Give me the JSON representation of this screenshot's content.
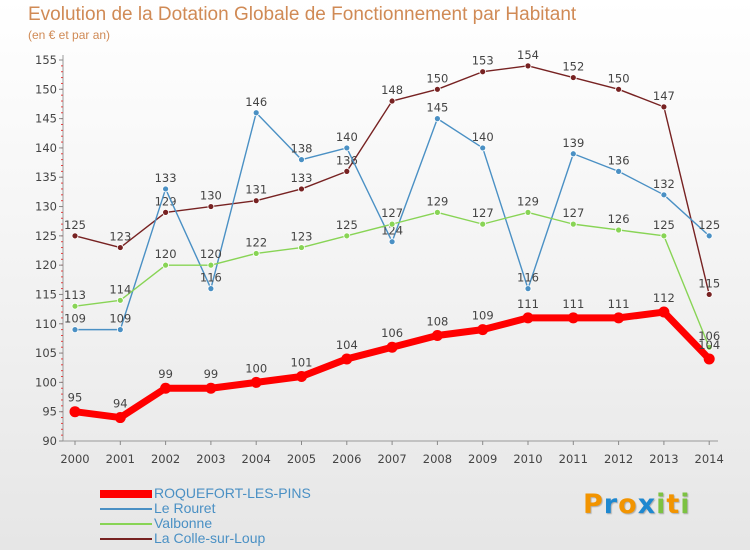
{
  "chart_data": {
    "type": "line",
    "title": "Evolution de la Dotation Globale de Fonctionnement par Habitant",
    "subtitle": "(en € et par an)",
    "xlabel": "",
    "ylabel": "",
    "ylim": [
      90,
      155
    ],
    "yticks": [
      90,
      95,
      100,
      105,
      110,
      115,
      120,
      125,
      130,
      135,
      140,
      145,
      150,
      155
    ],
    "categories": [
      "2000",
      "2001",
      "2002",
      "2003",
      "2004",
      "2005",
      "2006",
      "2007",
      "2008",
      "2009",
      "2010",
      "2011",
      "2012",
      "2013",
      "2014"
    ],
    "series": [
      {
        "name": "La Colle-sur-Loup",
        "color": "#772222",
        "values": [
          125,
          123,
          129,
          130,
          131,
          133,
          136,
          148,
          150,
          153,
          154,
          152,
          150,
          147,
          115
        ]
      },
      {
        "name": "Le Rouret",
        "color": "#4a90c4",
        "values": [
          109,
          109,
          133,
          116,
          146,
          138,
          140,
          124,
          145,
          140,
          116,
          139,
          136,
          132,
          125
        ]
      },
      {
        "name": "Valbonne",
        "color": "#88d455",
        "values": [
          113,
          114,
          120,
          120,
          122,
          123,
          125,
          127,
          129,
          127,
          129,
          127,
          126,
          125,
          106
        ]
      },
      {
        "name": "ROQUEFORT-LES-PINS",
        "color": "#ff0000",
        "values": [
          95,
          94,
          99,
          99,
          100,
          101,
          104,
          106,
          108,
          109,
          111,
          111,
          111,
          112,
          104
        ]
      }
    ],
    "legend_position": "bottom-left"
  },
  "legend": [
    {
      "label": "ROQUEFORT-LES-PINS",
      "color": "#ff0000"
    },
    {
      "label": "Le Rouret",
      "color": "#4a90c4"
    },
    {
      "label": "Valbonne",
      "color": "#88d455"
    },
    {
      "label": "La Colle-sur-Loup",
      "color": "#772222"
    }
  ],
  "logo": {
    "text": "Proxiti",
    "letters": [
      "P",
      "r",
      "o",
      "x",
      "i",
      "t",
      "i"
    ],
    "colors": [
      "#f29400",
      "#1e88d0",
      "#f29400",
      "#1e88d0",
      "#7cc242",
      "#f29400",
      "#7cc242"
    ]
  }
}
